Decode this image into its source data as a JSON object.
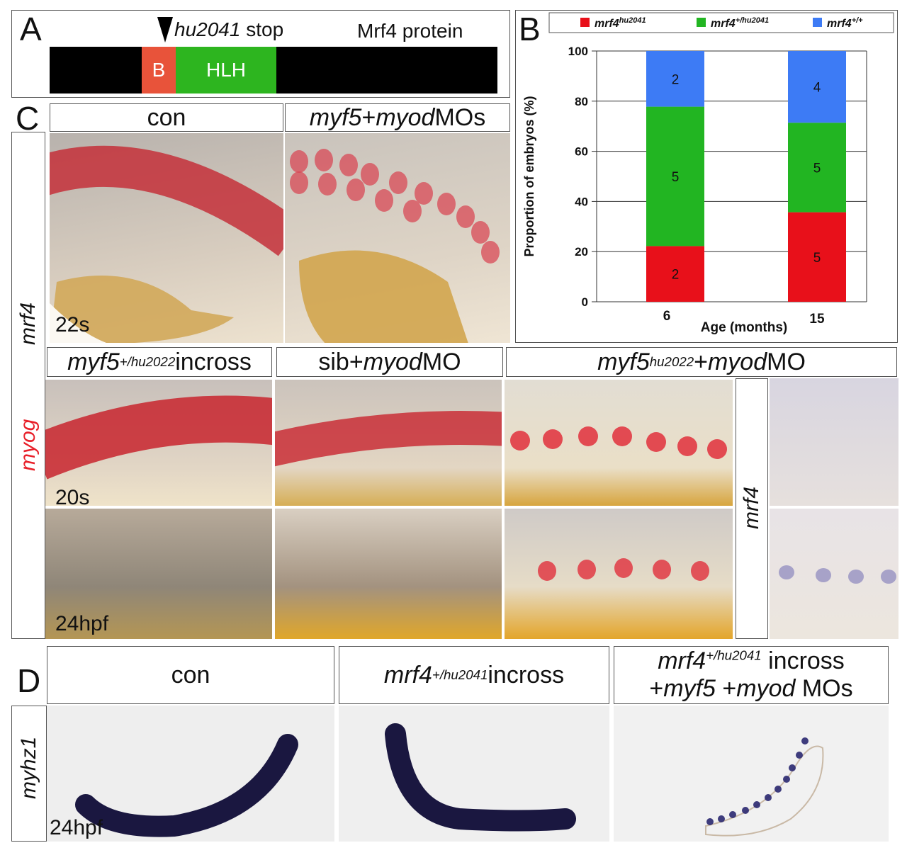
{
  "panels": {
    "A": {
      "letter": "A",
      "mutation_label": "hu2041",
      "mutation_suffix": " stop",
      "protein_label": "Mrf4 protein",
      "domain_b": "B",
      "domain_hlh": "HLH",
      "colors": {
        "basic": "#e8533a",
        "hlh": "#2db51f",
        "bar": "#000000"
      }
    },
    "B": {
      "letter": "B"
    },
    "C": {
      "letter": "C",
      "top_headers": {
        "con": "con",
        "mo_gene1": "myf5",
        "mo_mid": " +",
        "mo_gene2": "myod",
        "mo_suffix": " MOs"
      },
      "row_label_top": "mrf4",
      "row_label_mid": "myog",
      "time_22s": "22s",
      "mid_headers": {
        "h1_gene": "myf5",
        "h1_sup": "+/hu2022",
        "h1_suffix": " incross",
        "h2_prefix": "sib+",
        "h2_gene": "myod",
        "h2_suffix": " MO",
        "h3_gene": "myf5",
        "h3_sup": "hu2022",
        "h3_mid": "+",
        "h3_gene2": "myod",
        "h3_suffix": " MO"
      },
      "side_label": "mrf4",
      "time_20s": "20s",
      "time_24hpf": "24hpf",
      "colors": {
        "myog": "#e8202a",
        "mrf4_stain": "#7a74b8"
      }
    },
    "D": {
      "letter": "D",
      "headers": {
        "h1": "con",
        "h2_gene": "mrf4",
        "h2_sup": "+/hu2041",
        "h2_suffix": " incross",
        "h3_line1_gene": "mrf4",
        "h3_line1_sup": "+/hu2041",
        "h3_line1_suffix": " incross",
        "h3_line2_a": "+",
        "h3_line2_g1": "myf5",
        "h3_line2_b": " +",
        "h3_line2_g2": "myod",
        "h3_line2_c": " MOs"
      },
      "row_label": "myhz1",
      "time": "24hpf"
    }
  },
  "chart_data": {
    "type": "bar",
    "stacked": true,
    "legend": [
      {
        "gene": "mrf4",
        "sup": "hu2041",
        "color": "#e8101a"
      },
      {
        "gene": "mrf4",
        "sup": "+/hu2041",
        "color": "#22b522"
      },
      {
        "gene": "mrf4",
        "sup": "+/+",
        "color": "#3d7bf5"
      }
    ],
    "legend_position": "top",
    "categories": [
      "6",
      "15"
    ],
    "xlabel": "Age (months)",
    "ylabel": "Proportion of embryos (%)",
    "ylim": [
      0,
      100
    ],
    "yticks": [
      "0",
      "20",
      "40",
      "60",
      "80",
      "100"
    ],
    "grid": true,
    "series": [
      {
        "values": [
          22.2,
          35.7
        ],
        "counts": [
          "2",
          "5"
        ],
        "color": "#e8101a"
      },
      {
        "values": [
          55.6,
          35.7
        ],
        "counts": [
          "5",
          "5"
        ],
        "color": "#22b522"
      },
      {
        "values": [
          22.2,
          28.6
        ],
        "counts": [
          "2",
          "4"
        ],
        "color": "#3d7bf5"
      }
    ]
  }
}
